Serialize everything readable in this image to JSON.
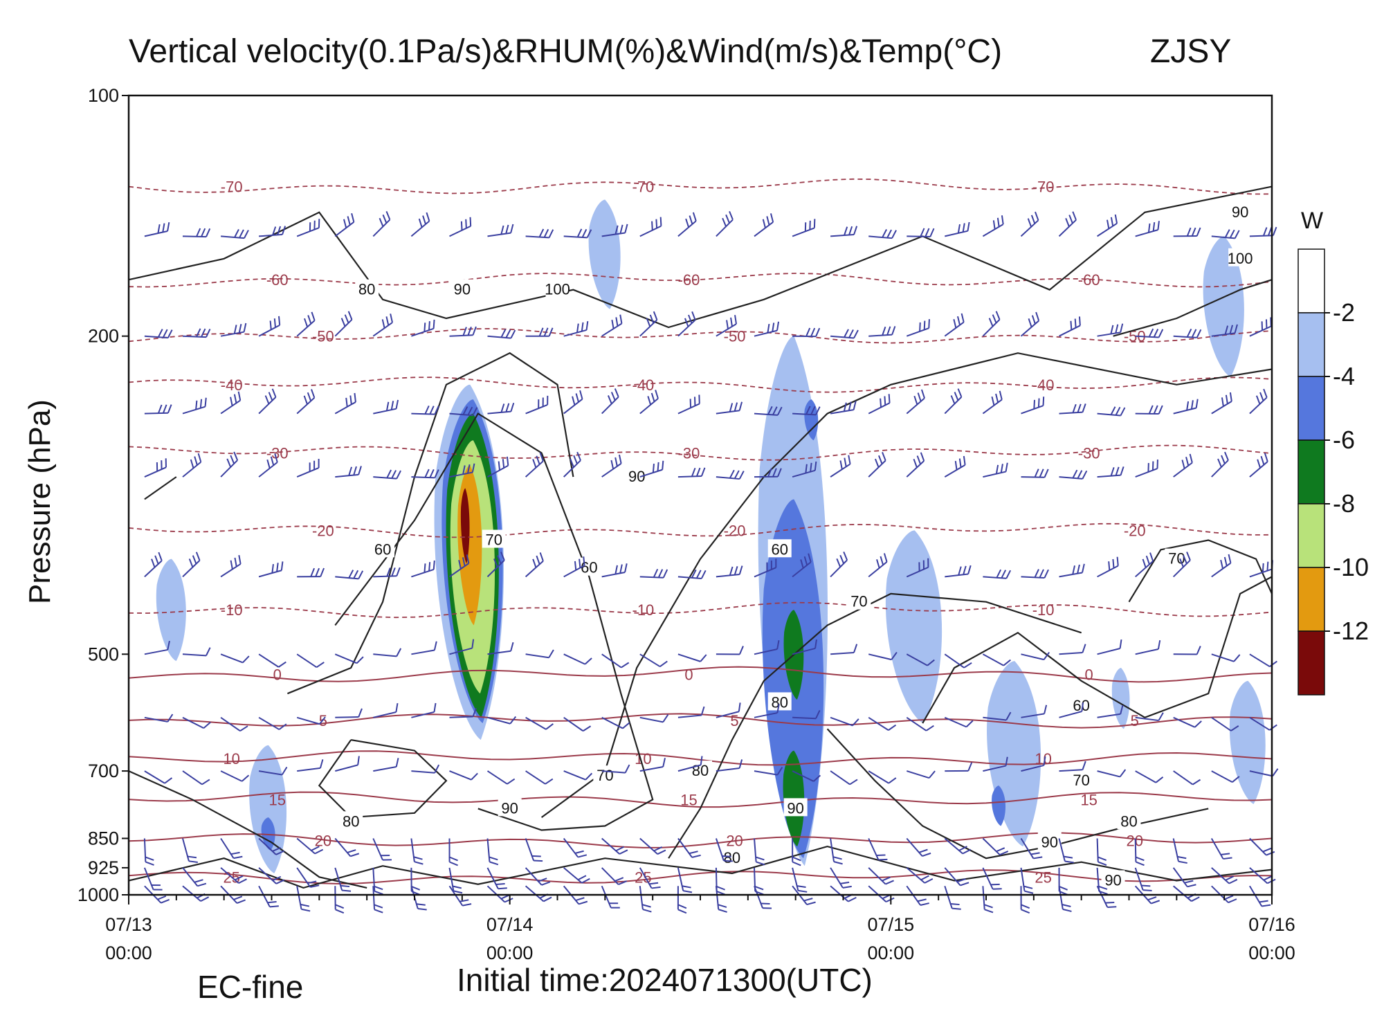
{
  "chart_data": {
    "type": "heatmap",
    "title": "Vertical velocity(0.1Pa/s)&RHUM(%)&Wind(m/s)&Temp(°C)",
    "station": "ZJSY",
    "ylabel": "Pressure (hPa)",
    "xlabel": "",
    "y_scale": "log",
    "ylim": [
      1000,
      100
    ],
    "y_ticks": [
      100,
      200,
      500,
      700,
      850,
      925,
      1000
    ],
    "x_ticks": [
      {
        "line1": "07/13",
        "line2": "00:00",
        "hour": 0
      },
      {
        "line1": "07/14",
        "line2": "00:00",
        "hour": 24
      },
      {
        "line1": "07/15",
        "line2": "00:00",
        "hour": 48
      },
      {
        "line1": "07/16",
        "line2": "00:00",
        "hour": 72
      }
    ],
    "xlim_hours": [
      0,
      72
    ],
    "colorbar": {
      "title": "W",
      "levels": [
        "-2",
        "-4",
        "-6",
        "-8",
        "-10",
        "-12"
      ],
      "colors": [
        "#ffffff",
        "#a6bff0",
        "#5577dd",
        "#0f7a1f",
        "#b8e27a",
        "#e39a10",
        "#7a0a0a"
      ]
    },
    "w_cells": [
      {
        "hour": 21.5,
        "p_top": 230,
        "p_bottom": 640,
        "level": 1
      },
      {
        "hour": 21.7,
        "p_top": 240,
        "p_bottom": 610,
        "level": 2
      },
      {
        "hour": 21.7,
        "p_top": 250,
        "p_bottom": 600,
        "level": 3
      },
      {
        "hour": 21.7,
        "p_top": 270,
        "p_bottom": 560,
        "level": 4
      },
      {
        "hour": 21.5,
        "p_top": 290,
        "p_bottom": 460,
        "level": 5
      },
      {
        "hour": 21.2,
        "p_top": 310,
        "p_bottom": 385,
        "level": 6
      },
      {
        "hour": 41.9,
        "p_top": 200,
        "p_bottom": 920,
        "level": 1
      },
      {
        "hour": 41.9,
        "p_top": 320,
        "p_bottom": 900,
        "level": 2
      },
      {
        "hour": 41.9,
        "p_top": 440,
        "p_bottom": 570,
        "level": 3
      },
      {
        "hour": 41.9,
        "p_top": 660,
        "p_bottom": 870,
        "level": 3
      },
      {
        "hour": 2.7,
        "p_top": 380,
        "p_bottom": 510,
        "level": 1
      },
      {
        "hour": 8.8,
        "p_top": 650,
        "p_bottom": 940,
        "level": 1
      },
      {
        "hour": 8.8,
        "p_top": 800,
        "p_bottom": 880,
        "level": 2
      },
      {
        "hour": 55.8,
        "p_top": 510,
        "p_bottom": 870,
        "level": 1
      },
      {
        "hour": 54.8,
        "p_top": 730,
        "p_bottom": 820,
        "level": 2
      },
      {
        "hour": 49.5,
        "p_top": 350,
        "p_bottom": 610,
        "level": 1
      },
      {
        "hour": 62.5,
        "p_top": 520,
        "p_bottom": 620,
        "level": 1
      },
      {
        "hour": 70.5,
        "p_top": 540,
        "p_bottom": 770,
        "level": 1
      },
      {
        "hour": 69.0,
        "p_top": 150,
        "p_bottom": 225,
        "level": 1
      },
      {
        "hour": 30.0,
        "p_top": 135,
        "p_bottom": 185,
        "level": 1
      },
      {
        "hour": 43.0,
        "p_top": 240,
        "p_bottom": 270,
        "level": 2
      }
    ],
    "temperature_isotherms": [
      {
        "label": "-70",
        "p": 130
      },
      {
        "label": "-60",
        "p": 170
      },
      {
        "label": "-50",
        "p": 200
      },
      {
        "label": "-40",
        "p": 230
      },
      {
        "label": "-30",
        "p": 280
      },
      {
        "label": "-20",
        "p": 350
      },
      {
        "label": "-10",
        "p": 440
      },
      {
        "label": "0",
        "p": 530
      },
      {
        "label": "5",
        "p": 605
      },
      {
        "label": "10",
        "p": 675
      },
      {
        "label": "15",
        "p": 760
      },
      {
        "label": "20",
        "p": 855
      },
      {
        "label": "25",
        "p": 950
      }
    ],
    "rhum_labels": [
      "60",
      "80",
      "90",
      "100",
      "90",
      "60",
      "80",
      "70",
      "80",
      "90",
      "60",
      "70",
      "80",
      "90",
      "70",
      "60",
      "70",
      "70",
      "80",
      "90",
      "80",
      "90",
      "90",
      "100"
    ],
    "footer_left": "EC-fine",
    "footer_center": "Initial time:2024071300(UTC)"
  }
}
